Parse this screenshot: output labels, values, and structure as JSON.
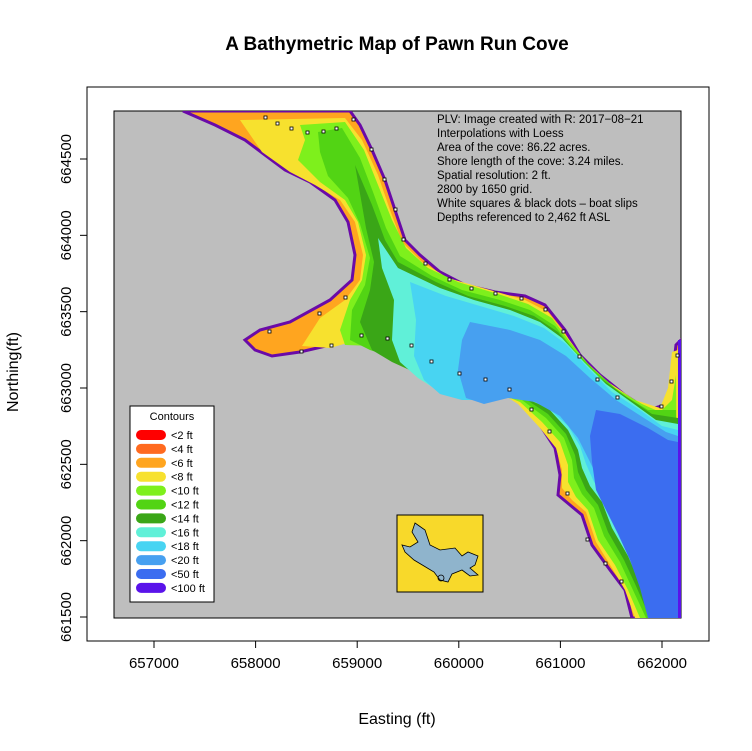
{
  "title": "A Bathymetric Map of  Pawn Run Cove",
  "xlabel": "Easting (ft)",
  "ylabel": "Northing(ft)",
  "x_ticks": [
    "657000",
    "658000",
    "659000",
    "660000",
    "661000",
    "662000"
  ],
  "y_ticks": [
    "661500",
    "662000",
    "662500",
    "663000",
    "663500",
    "664000",
    "664500"
  ],
  "notes": [
    "PLV: Image created with R: 2017−08−21",
    "Interpolations with Loess",
    "Area of the cove: 86.22 acres.",
    "Shore length of the cove: 3.24 miles.",
    "Spatial resolution: 2 ft.",
    "2800 by 1650 grid.",
    "White squares & black dots – boat slips",
    "Depths referenced to 2,462 ft ASL"
  ],
  "legend": {
    "title": "Contours",
    "items": [
      {
        "label": "<2 ft",
        "color": "#ff0000"
      },
      {
        "label": "<4 ft",
        "color": "#ff6a1f"
      },
      {
        "label": "<6 ft",
        "color": "#ffa51f"
      },
      {
        "label": "<8 ft",
        "color": "#f7e12e"
      },
      {
        "label": "<10 ft",
        "color": "#7ef01c"
      },
      {
        "label": "<12 ft",
        "color": "#52d414"
      },
      {
        "label": "<14 ft",
        "color": "#3aa617"
      },
      {
        "label": "<16 ft",
        "color": "#60f0d8"
      },
      {
        "label": "<18 ft",
        "color": "#48d4f2"
      },
      {
        "label": "<20 ft",
        "color": "#47a0f0"
      },
      {
        "label": "<50 ft",
        "color": "#3b6df0"
      },
      {
        "label": "<100 ft",
        "color": "#5a13ea"
      }
    ]
  },
  "colors": {
    "land": "#bebebe",
    "shoreline": "#6a0aa8",
    "inset_background": "#f8d92a",
    "inset_water": "#8fb4cc"
  },
  "chart_data": {
    "type": "heatmap",
    "title": "A Bathymetric Map of  Pawn Run Cove",
    "xlabel": "Easting (ft)",
    "ylabel": "Northing(ft)",
    "xlim": [
      656200,
      662200
    ],
    "ylim": [
      661400,
      664800
    ],
    "x_ticks": [
      657000,
      658000,
      659000,
      660000,
      661000,
      662000
    ],
    "y_ticks": [
      661500,
      662000,
      662500,
      663000,
      663500,
      664000,
      664500
    ],
    "legend_position": "bottom-left",
    "grid": false
  }
}
